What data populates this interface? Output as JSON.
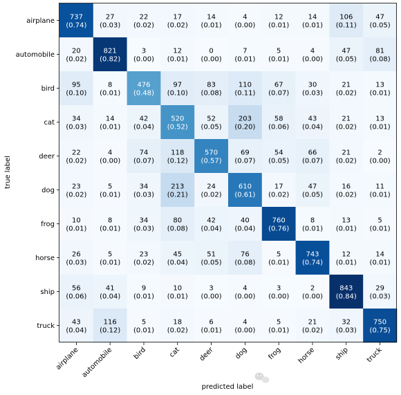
{
  "chart_data": {
    "type": "heatmap",
    "title": "",
    "xlabel": "predicted label",
    "ylabel": "true label",
    "x_categories": [
      "airplane",
      "automobile",
      "bird",
      "cat",
      "deer",
      "dog",
      "frog",
      "horse",
      "ship",
      "truck"
    ],
    "y_categories": [
      "airplane",
      "automobile",
      "bird",
      "cat",
      "deer",
      "dog",
      "frog",
      "horse",
      "ship",
      "truck"
    ],
    "colormap": "Blues",
    "value_range": [
      0,
      843
    ],
    "values": [
      [
        737,
        27,
        22,
        17,
        14,
        4,
        12,
        14,
        106,
        47
      ],
      [
        20,
        821,
        3,
        12,
        0,
        7,
        5,
        4,
        47,
        81
      ],
      [
        95,
        8,
        476,
        97,
        83,
        110,
        67,
        30,
        21,
        13
      ],
      [
        34,
        14,
        42,
        520,
        52,
        203,
        58,
        43,
        21,
        13
      ],
      [
        22,
        4,
        74,
        118,
        570,
        69,
        54,
        66,
        21,
        2
      ],
      [
        23,
        5,
        34,
        213,
        24,
        610,
        17,
        47,
        16,
        11
      ],
      [
        10,
        8,
        34,
        80,
        42,
        40,
        760,
        8,
        13,
        5
      ],
      [
        26,
        5,
        23,
        45,
        51,
        76,
        5,
        743,
        12,
        14
      ],
      [
        56,
        41,
        9,
        10,
        3,
        4,
        3,
        2,
        843,
        29
      ],
      [
        43,
        116,
        5,
        18,
        6,
        4,
        5,
        21,
        32,
        750
      ]
    ],
    "normalized": [
      [
        "(0.74)",
        "(0.03)",
        "(0.02)",
        "(0.02)",
        "(0.01)",
        "(0.00)",
        "(0.01)",
        "(0.01)",
        "(0.11)",
        "(0.05)"
      ],
      [
        "(0.02)",
        "(0.82)",
        "(0.00)",
        "(0.01)",
        "(0.00)",
        "(0.01)",
        "(0.01)",
        "(0.00)",
        "(0.05)",
        "(0.08)"
      ],
      [
        "(0.10)",
        "(0.01)",
        "(0.48)",
        "(0.10)",
        "(0.08)",
        "(0.11)",
        "(0.07)",
        "(0.03)",
        "(0.02)",
        "(0.01)"
      ],
      [
        "(0.03)",
        "(0.01)",
        "(0.04)",
        "(0.52)",
        "(0.05)",
        "(0.20)",
        "(0.06)",
        "(0.04)",
        "(0.02)",
        "(0.01)"
      ],
      [
        "(0.02)",
        "(0.00)",
        "(0.07)",
        "(0.12)",
        "(0.57)",
        "(0.07)",
        "(0.05)",
        "(0.07)",
        "(0.02)",
        "(0.00)"
      ],
      [
        "(0.02)",
        "(0.01)",
        "(0.03)",
        "(0.21)",
        "(0.02)",
        "(0.61)",
        "(0.02)",
        "(0.05)",
        "(0.02)",
        "(0.01)"
      ],
      [
        "(0.01)",
        "(0.01)",
        "(0.03)",
        "(0.08)",
        "(0.04)",
        "(0.04)",
        "(0.76)",
        "(0.01)",
        "(0.01)",
        "(0.01)"
      ],
      [
        "(0.03)",
        "(0.01)",
        "(0.02)",
        "(0.04)",
        "(0.05)",
        "(0.08)",
        "(0.01)",
        "(0.74)",
        "(0.01)",
        "(0.01)"
      ],
      [
        "(0.06)",
        "(0.04)",
        "(0.01)",
        "(0.01)",
        "(0.00)",
        "(0.00)",
        "(0.00)",
        "(0.00)",
        "(0.84)",
        "(0.03)"
      ],
      [
        "(0.04)",
        "(0.12)",
        "(0.01)",
        "(0.02)",
        "(0.01)",
        "(0.00)",
        "(0.01)",
        "(0.02)",
        "(0.03)",
        "(0.75)"
      ]
    ],
    "colors": {
      "low": "#f7fbff",
      "high": "#08306b",
      "text_dark": "#000000",
      "text_light": "#ffffff"
    }
  },
  "watermark": {
    "icon": "wechat-icon",
    "color": "#c9c9c9"
  }
}
